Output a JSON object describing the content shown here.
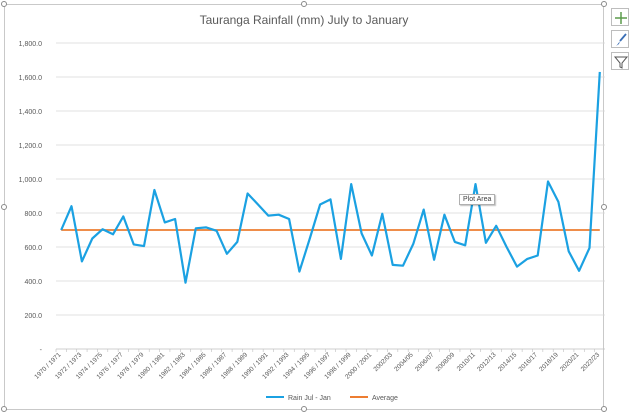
{
  "side_buttons": [
    {
      "icon": "plus-icon"
    },
    {
      "icon": "brush-icon"
    },
    {
      "icon": "filter-icon"
    }
  ],
  "tooltip": {
    "text": "Plot Area"
  },
  "colors": {
    "rain": "#1ba1e2",
    "average": "#ed7d31",
    "grid": "#d9d9d9",
    "axis_text": "#595959"
  },
  "chart_data": {
    "type": "line",
    "title": "Tauranga Rainfall (mm) July to January",
    "xlabel": "",
    "ylabel": "",
    "ylim": [
      0,
      1800
    ],
    "yticks": [
      0,
      200,
      400,
      600,
      800,
      1000,
      1200,
      1400,
      1600,
      1800
    ],
    "ytick_labels": [
      "-",
      "200.0",
      "400.0",
      "600.0",
      "800.0",
      "1,000.0",
      "1,200.0",
      "1,400.0",
      "1,600.0",
      "1,800.0"
    ],
    "grid": true,
    "legend_position": "bottom",
    "categories": [
      "1970 / 1971",
      "1971 / 1972",
      "1972 / 1973",
      "1973 / 1974",
      "1974 / 1975",
      "1975 / 1976",
      "1976 / 1977",
      "1977 / 1978",
      "1978 / 1979",
      "1979 / 1980",
      "1980 / 1981",
      "1981 / 1982",
      "1982 / 1983",
      "1983 / 1984",
      "1984 / 1985",
      "1985 / 1986",
      "1986 / 1987",
      "1987 / 1988",
      "1988 / 1989",
      "1989 / 1990",
      "1990 / 1991",
      "1991 / 1992",
      "1992 / 1993",
      "1993 / 1994",
      "1994 / 1995",
      "1995 / 1996",
      "1996 / 1997",
      "1997 / 1998",
      "1998 / 1999",
      "1999 / 2000",
      "2000 / 2001",
      "2001 / 2002",
      "2002/03",
      "2003/04",
      "2004/05",
      "2005/06",
      "2006/07",
      "2007/08",
      "2008/09",
      "2009/10",
      "2010/11",
      "2011/12",
      "2012/13",
      "2013/14",
      "2014/15",
      "2015/16",
      "2016/17",
      "2017/18",
      "2018/19",
      "2019/20",
      "2020/21",
      "2021/22",
      "2022/23"
    ],
    "visible_tick_labels": [
      "1970 / 1971",
      "1972 / 1973",
      "1974 / 1975",
      "1976 / 1977",
      "1978 / 1979",
      "1980 / 1981",
      "1982 / 1983",
      "1984 / 1985",
      "1986 / 1987",
      "1988 / 1989",
      "1990 / 1991",
      "1992 / 1993",
      "1994 / 1995",
      "1996 / 1997",
      "1998 / 1999",
      "2000 / 2001",
      "2002/03",
      "2004/05",
      "2006/07",
      "2008/09",
      "2010/11",
      "2012/13",
      "2014/15",
      "2016/17",
      "2018/19",
      "2020/21",
      "2022/23"
    ],
    "series": [
      {
        "name": "Rain Jul - Jan",
        "color": "#1ba1e2",
        "values": [
          700,
          840,
          515,
          650,
          705,
          675,
          780,
          615,
          605,
          935,
          745,
          765,
          390,
          710,
          715,
          695,
          560,
          630,
          915,
          850,
          785,
          790,
          765,
          455,
          650,
          850,
          880,
          530,
          970,
          680,
          550,
          795,
          495,
          490,
          620,
          820,
          525,
          790,
          630,
          610,
          970,
          625,
          725,
          600,
          485,
          530,
          550,
          985,
          865,
          575,
          460,
          595,
          1630
        ]
      },
      {
        "name": "Average",
        "color": "#ed7d31",
        "values": [
          700,
          700,
          700,
          700,
          700,
          700,
          700,
          700,
          700,
          700,
          700,
          700,
          700,
          700,
          700,
          700,
          700,
          700,
          700,
          700,
          700,
          700,
          700,
          700,
          700,
          700,
          700,
          700,
          700,
          700,
          700,
          700,
          700,
          700,
          700,
          700,
          700,
          700,
          700,
          700,
          700,
          700,
          700,
          700,
          700,
          700,
          700,
          700,
          700,
          700,
          700,
          700,
          700
        ]
      }
    ]
  }
}
